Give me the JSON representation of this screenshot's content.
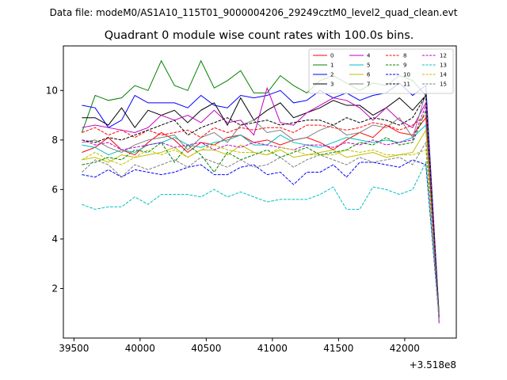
{
  "suptitle": "Data file: modeM0/AS1A10_115T01_9000004206_29249cztM0_level2_quad_clean.evt",
  "title": "Quadrant 0 module wise count rates with 100.0s bins.",
  "offset_label": "+3.518e8",
  "chart_data": {
    "type": "line",
    "title": "Quadrant 0 module wise count rates with 100.0s bins.",
    "xlabel": "",
    "ylabel": "",
    "x_offset": 351800000,
    "xlim": [
      39420,
      42390
    ],
    "ylim": [
      0.0,
      11.8
    ],
    "xticks": [
      39500,
      40000,
      40500,
      41000,
      41500,
      42000
    ],
    "xtick_labels": [
      "39500",
      "40000",
      "40500",
      "41000",
      "41500",
      "42000"
    ],
    "yticks": [
      2,
      4,
      6,
      8,
      10
    ],
    "ytick_labels": [
      "2",
      "4",
      "6",
      "8",
      "10"
    ],
    "grid": false,
    "legend_position": "top-right",
    "x": [
      39560,
      39660,
      39760,
      39860,
      39960,
      40060,
      40160,
      40260,
      40360,
      40460,
      40560,
      40660,
      40760,
      40860,
      40960,
      41060,
      41160,
      41260,
      41360,
      41460,
      41560,
      41660,
      41760,
      41860,
      41960,
      42060,
      42160,
      42260
    ],
    "series": [
      {
        "name": "0",
        "color": "#ff0000",
        "dash": "solid",
        "values": [
          7.5,
          7.7,
          8.1,
          7.6,
          7.4,
          7.9,
          8.3,
          8.0,
          7.5,
          7.9,
          7.8,
          8.1,
          8.2,
          7.9,
          8.0,
          7.8,
          8.0,
          8.1,
          7.9,
          7.6,
          8.0,
          8.3,
          8.1,
          8.6,
          8.3,
          8.2,
          8.9,
          0.8
        ]
      },
      {
        "name": "1",
        "color": "#008000",
        "dash": "solid",
        "values": [
          8.3,
          9.8,
          9.6,
          9.7,
          10.2,
          10.0,
          11.2,
          10.2,
          10.0,
          11.2,
          10.1,
          10.4,
          10.8,
          9.9,
          9.9,
          10.6,
          10.2,
          9.9,
          10.4,
          10.6,
          10.3,
          10.0,
          10.3,
          10.2,
          10.6,
          10.4,
          9.8,
          1.0
        ]
      },
      {
        "name": "2",
        "color": "#0000ff",
        "dash": "solid",
        "values": [
          9.4,
          9.3,
          8.5,
          8.8,
          9.8,
          9.5,
          9.5,
          9.5,
          9.3,
          9.8,
          9.4,
          9.3,
          9.8,
          9.7,
          9.8,
          10.0,
          9.5,
          9.6,
          10.0,
          9.7,
          9.9,
          9.6,
          9.8,
          9.9,
          10.3,
          9.8,
          10.2,
          0.9
        ]
      },
      {
        "name": "3",
        "color": "#000000",
        "dash": "solid",
        "values": [
          8.9,
          8.9,
          8.6,
          9.3,
          8.5,
          9.2,
          9.0,
          9.2,
          8.7,
          9.2,
          9.5,
          8.6,
          9.7,
          8.8,
          9.2,
          9.5,
          8.9,
          9.1,
          9.3,
          9.6,
          9.4,
          9.4,
          9.0,
          9.3,
          9.7,
          9.2,
          9.8,
          0.8
        ]
      },
      {
        "name": "4",
        "color": "#c000c0",
        "dash": "solid",
        "values": [
          8.5,
          8.6,
          8.5,
          8.4,
          8.3,
          8.5,
          9.0,
          8.8,
          9.0,
          8.7,
          9.2,
          8.7,
          8.8,
          8.2,
          10.1,
          8.7,
          8.6,
          9.1,
          9.4,
          9.7,
          9.6,
          9.3,
          8.8,
          9.3,
          8.8,
          8.5,
          9.5,
          0.6
        ]
      },
      {
        "name": "5",
        "color": "#00bfbf",
        "dash": "solid",
        "values": [
          7.8,
          7.7,
          7.4,
          7.6,
          7.5,
          7.8,
          7.9,
          8.1,
          7.8,
          7.7,
          7.9,
          8.0,
          8.2,
          7.8,
          7.8,
          8.2,
          7.9,
          7.8,
          7.7,
          7.9,
          8.1,
          8.0,
          7.9,
          8.0,
          7.9,
          8.1,
          8.6,
          0.8
        ]
      },
      {
        "name": "6",
        "color": "#bfbf00",
        "dash": "solid",
        "values": [
          7.2,
          7.3,
          7.1,
          7.4,
          7.3,
          7.4,
          7.5,
          7.7,
          7.3,
          7.6,
          7.6,
          7.4,
          7.8,
          7.5,
          7.4,
          7.6,
          7.3,
          7.4,
          7.5,
          7.6,
          7.3,
          7.4,
          7.5,
          7.3,
          7.4,
          7.5,
          8.4,
          0.8
        ]
      },
      {
        "name": "7",
        "color": "#808080",
        "dash": "solid",
        "values": [
          7.9,
          8.0,
          7.7,
          7.5,
          7.8,
          8.0,
          8.1,
          8.2,
          7.6,
          8.1,
          8.3,
          7.9,
          8.6,
          8.8,
          8.3,
          8.4,
          8.0,
          8.1,
          8.4,
          8.6,
          8.2,
          8.3,
          8.6,
          8.5,
          8.9,
          8.1,
          9.9,
          0.8
        ]
      },
      {
        "name": "8",
        "color": "#ff0000",
        "dash": "dashed",
        "values": [
          8.3,
          8.5,
          8.2,
          8.4,
          8.1,
          8.4,
          8.2,
          8.3,
          8.4,
          8.1,
          8.5,
          8.3,
          8.5,
          8.4,
          8.5,
          8.5,
          8.3,
          8.6,
          8.6,
          8.5,
          8.4,
          8.5,
          8.7,
          8.6,
          8.4,
          8.6,
          9.0,
          0.8
        ]
      },
      {
        "name": "9",
        "color": "#008000",
        "dash": "dashed",
        "values": [
          7.0,
          7.1,
          7.3,
          7.2,
          7.6,
          7.5,
          7.9,
          7.1,
          7.8,
          7.4,
          6.7,
          7.5,
          7.2,
          7.4,
          7.6,
          7.3,
          7.5,
          7.7,
          7.4,
          7.5,
          7.6,
          7.9,
          7.8,
          8.1,
          7.8,
          7.9,
          9.2,
          0.8
        ]
      },
      {
        "name": "10",
        "color": "#0000ff",
        "dash": "dashed",
        "values": [
          6.6,
          6.5,
          6.8,
          6.5,
          6.8,
          6.7,
          6.6,
          6.7,
          6.9,
          7.0,
          6.6,
          6.6,
          6.9,
          7.0,
          6.6,
          6.7,
          6.2,
          6.7,
          6.7,
          7.0,
          6.5,
          7.1,
          7.1,
          7.0,
          6.9,
          7.2,
          7.0,
          0.8
        ]
      },
      {
        "name": "11",
        "color": "#000000",
        "dash": "dashed",
        "values": [
          8.0,
          7.9,
          8.1,
          8.0,
          8.2,
          8.4,
          8.6,
          8.8,
          8.2,
          8.5,
          8.7,
          8.9,
          8.6,
          8.7,
          8.8,
          8.6,
          8.7,
          8.8,
          8.8,
          8.6,
          8.9,
          8.7,
          8.9,
          8.8,
          8.6,
          8.9,
          9.8,
          0.8
        ]
      },
      {
        "name": "12",
        "color": "#c000c0",
        "dash": "dashed",
        "values": [
          8.0,
          7.8,
          7.9,
          7.6,
          7.7,
          7.8,
          7.9,
          7.7,
          7.8,
          7.9,
          7.6,
          7.8,
          7.7,
          7.9,
          7.8,
          7.7,
          7.6,
          7.8,
          7.8,
          7.7,
          7.9,
          7.8,
          8.0,
          7.8,
          7.9,
          8.0,
          9.4,
          0.6
        ]
      },
      {
        "name": "13",
        "color": "#00bfbf",
        "dash": "dashed",
        "values": [
          5.4,
          5.2,
          5.3,
          5.3,
          5.7,
          5.4,
          5.8,
          5.8,
          5.8,
          5.7,
          6.0,
          5.7,
          5.9,
          5.7,
          5.5,
          5.6,
          5.6,
          5.6,
          5.8,
          6.1,
          5.2,
          5.2,
          6.1,
          6.0,
          5.8,
          6.0,
          7.1,
          0.8
        ]
      },
      {
        "name": "14",
        "color": "#bfbf00",
        "dash": "dashed",
        "values": [
          7.2,
          7.5,
          7.2,
          7.0,
          7.3,
          7.6,
          7.4,
          7.6,
          7.3,
          7.6,
          7.8,
          7.6,
          7.5,
          7.5,
          7.4,
          7.7,
          7.6,
          7.4,
          7.4,
          7.4,
          7.6,
          7.5,
          7.6,
          7.4,
          7.4,
          7.4,
          7.6,
          0.8
        ]
      },
      {
        "name": "15",
        "color": "#808080",
        "dash": "dashed",
        "values": [
          6.7,
          7.2,
          7.0,
          6.5,
          7.0,
          6.8,
          7.0,
          7.2,
          6.9,
          7.3,
          7.1,
          6.9,
          7.2,
          6.9,
          7.0,
          7.3,
          6.9,
          7.2,
          7.4,
          7.2,
          7.0,
          7.3,
          7.1,
          7.2,
          7.3,
          7.0,
          7.9,
          0.8
        ]
      }
    ]
  }
}
